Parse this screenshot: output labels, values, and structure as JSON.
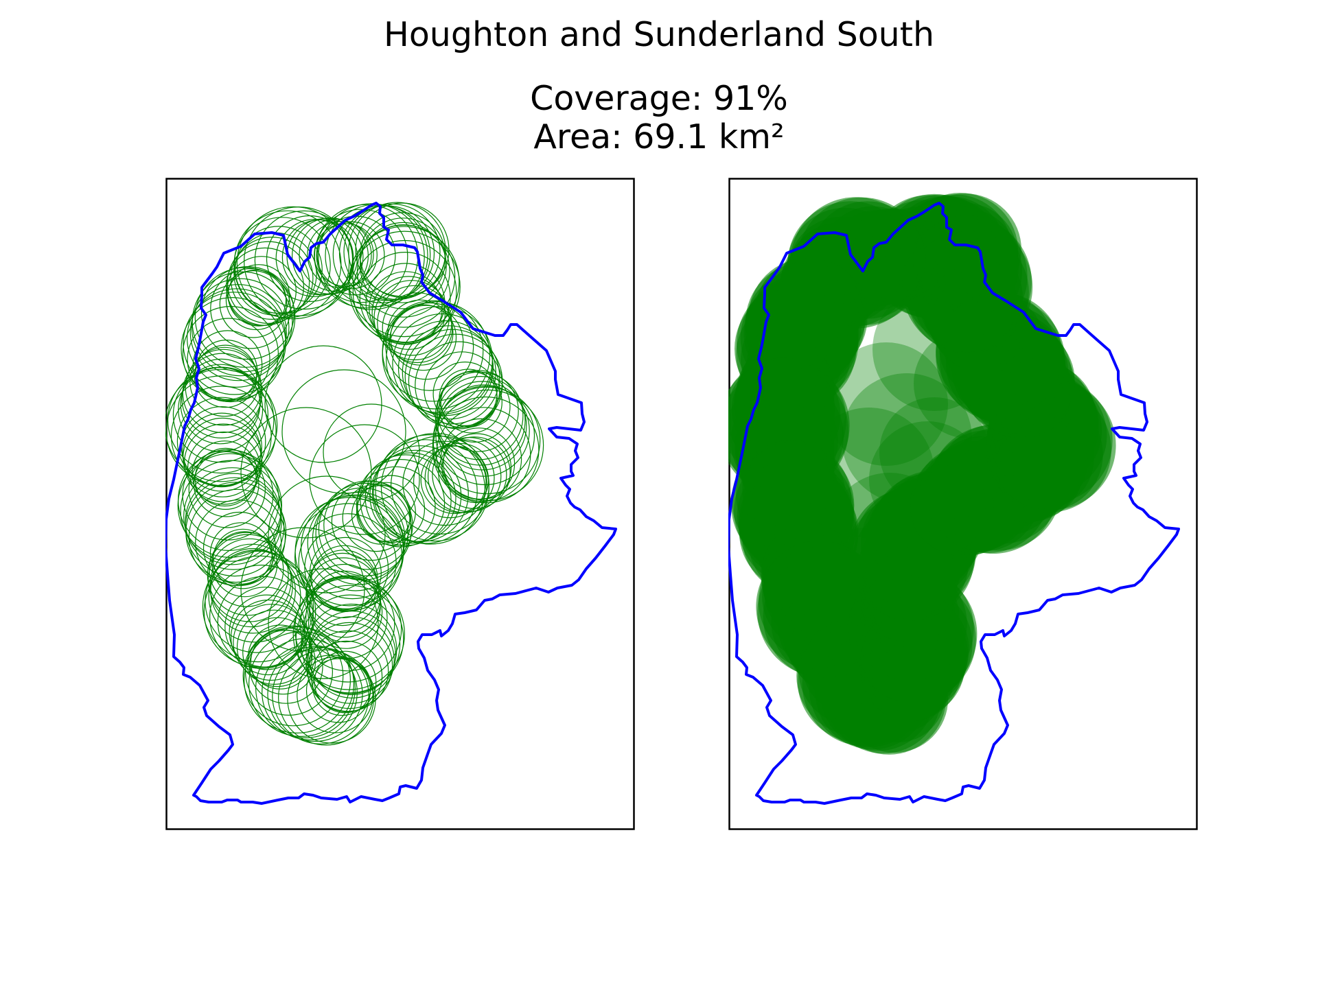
{
  "figure": {
    "title": "Houghton and Sunderland South",
    "coverage_text": "Coverage: 91%",
    "area_text": "Area: 69.1 km²"
  },
  "colors": {
    "boundary": "#0000ff",
    "coverage": "#008000",
    "frame": "#000000",
    "background": "#ffffff"
  },
  "panels": [
    {
      "name": "circle-outlines",
      "style": "outline"
    },
    {
      "name": "filled-coverage",
      "style": "filled"
    }
  ],
  "chart_data": {
    "type": "map",
    "region": "Houghton and Sunderland South",
    "coverage_percent": 91,
    "area_km2": 69.1,
    "boundary_color": "#0000ff",
    "coverage_color": "#008000"
  }
}
